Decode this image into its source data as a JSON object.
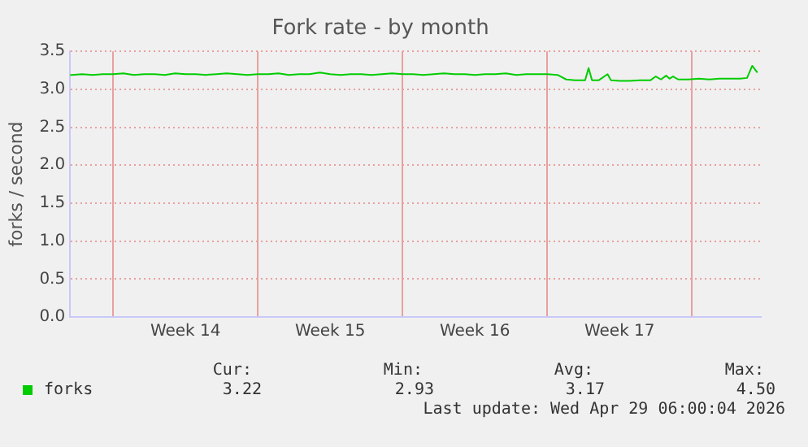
{
  "chart_data": {
    "type": "line",
    "title": "Fork rate - by month",
    "ylabel": "forks / second",
    "x": [
      "2026-03-26T22:00",
      "2026-03-27T00:00",
      "2026-03-27T12:00",
      "2026-03-28T00:00",
      "2026-03-28T12:00",
      "2026-03-29T00:00",
      "2026-03-29T12:00",
      "2026-03-30T00:00",
      "2026-03-30T12:00",
      "2026-03-31T00:00",
      "2026-03-31T12:00",
      "2026-04-01T00:00",
      "2026-04-01T12:00",
      "2026-04-02T00:00",
      "2026-04-02T12:00",
      "2026-04-03T00:00",
      "2026-04-03T12:00",
      "2026-04-04T00:00",
      "2026-04-04T12:00",
      "2026-04-05T00:00",
      "2026-04-05T12:00",
      "2026-04-06T00:00",
      "2026-04-06T12:00",
      "2026-04-07T00:00",
      "2026-04-07T12:00",
      "2026-04-08T00:00",
      "2026-04-08T12:00",
      "2026-04-09T00:00",
      "2026-04-09T12:00",
      "2026-04-10T00:00",
      "2026-04-10T12:00",
      "2026-04-11T00:00",
      "2026-04-11T12:00",
      "2026-04-12T00:00",
      "2026-04-12T12:00",
      "2026-04-13T00:00",
      "2026-04-13T12:00",
      "2026-04-14T00:00",
      "2026-04-14T12:00",
      "2026-04-15T00:00",
      "2026-04-15T12:00",
      "2026-04-16T00:00",
      "2026-04-16T12:00",
      "2026-04-17T00:00",
      "2026-04-17T12:00",
      "2026-04-18T00:00",
      "2026-04-18T12:00",
      "2026-04-19T00:00",
      "2026-04-19T12:00",
      "2026-04-19T22:00",
      "2026-04-20T08:00",
      "2026-04-20T20:00",
      "2026-04-21T00:00",
      "2026-04-21T04:00",
      "2026-04-21T12:00",
      "2026-04-21T22:00",
      "2026-04-22T02:00",
      "2026-04-22T12:00",
      "2026-04-23T00:00",
      "2026-04-23T12:00",
      "2026-04-24T00:00",
      "2026-04-24T06:00",
      "2026-04-24T12:00",
      "2026-04-24T18:00",
      "2026-04-24T22:00",
      "2026-04-25T02:00",
      "2026-04-25T08:00",
      "2026-04-25T20:00",
      "2026-04-26T08:00",
      "2026-04-26T20:00",
      "2026-04-27T08:00",
      "2026-04-27T20:00",
      "2026-04-28T08:00",
      "2026-04-28T16:00",
      "2026-04-28T22:00",
      "2026-04-29T04:00"
    ],
    "series": [
      {
        "name": "forks",
        "color": "#00cc00",
        "values": [
          3.19,
          3.19,
          3.2,
          3.19,
          3.2,
          3.2,
          3.21,
          3.19,
          3.2,
          3.2,
          3.19,
          3.21,
          3.2,
          3.2,
          3.19,
          3.2,
          3.21,
          3.2,
          3.19,
          3.2,
          3.2,
          3.21,
          3.19,
          3.2,
          3.2,
          3.22,
          3.2,
          3.19,
          3.2,
          3.2,
          3.19,
          3.2,
          3.21,
          3.2,
          3.2,
          3.19,
          3.2,
          3.21,
          3.2,
          3.2,
          3.19,
          3.2,
          3.2,
          3.21,
          3.19,
          3.2,
          3.2,
          3.2,
          3.19,
          3.13,
          3.12,
          3.12,
          3.28,
          3.12,
          3.12,
          3.2,
          3.12,
          3.11,
          3.11,
          3.12,
          3.12,
          3.17,
          3.13,
          3.18,
          3.14,
          3.17,
          3.13,
          3.13,
          3.14,
          3.13,
          3.14,
          3.14,
          3.14,
          3.15,
          3.31,
          3.22
        ]
      }
    ],
    "xlim": [
      "2026-03-26T22:00",
      "2026-04-29T08:00"
    ],
    "xticks": [
      {
        "value": "2026-03-29T00:00",
        "label": null
      },
      {
        "value": "2026-04-01T12:00",
        "label": "Week 14"
      },
      {
        "value": "2026-04-05T00:00",
        "label": null
      },
      {
        "value": "2026-04-08T12:00",
        "label": "Week 15"
      },
      {
        "value": "2026-04-12T00:00",
        "label": null
      },
      {
        "value": "2026-04-15T12:00",
        "label": "Week 16"
      },
      {
        "value": "2026-04-19T00:00",
        "label": null
      },
      {
        "value": "2026-04-22T12:00",
        "label": "Week 17"
      },
      {
        "value": "2026-04-26T00:00",
        "label": null
      }
    ],
    "ylim": [
      0,
      3.5
    ],
    "yticks": [
      {
        "value": 0,
        "label": "0.0"
      },
      {
        "value": 0.5,
        "label": "0.5"
      },
      {
        "value": 1,
        "label": "1.0"
      },
      {
        "value": 1.5,
        "label": "1.5"
      },
      {
        "value": 2,
        "label": "2.0"
      },
      {
        "value": 2.5,
        "label": "2.5"
      },
      {
        "value": 3,
        "label": "3.0"
      },
      {
        "value": 3.5,
        "label": "3.5"
      }
    ],
    "grid": true,
    "legend": "bottom left",
    "marker": "none",
    "line_style": "solid",
    "annotations": [
      "Cur:",
      "Min:",
      "Avg:",
      "Max:",
      "3.22",
      "2.93",
      "3.17",
      "4.50",
      "Last update: Wed Apr 29 06:00:04 2026"
    ]
  }
}
